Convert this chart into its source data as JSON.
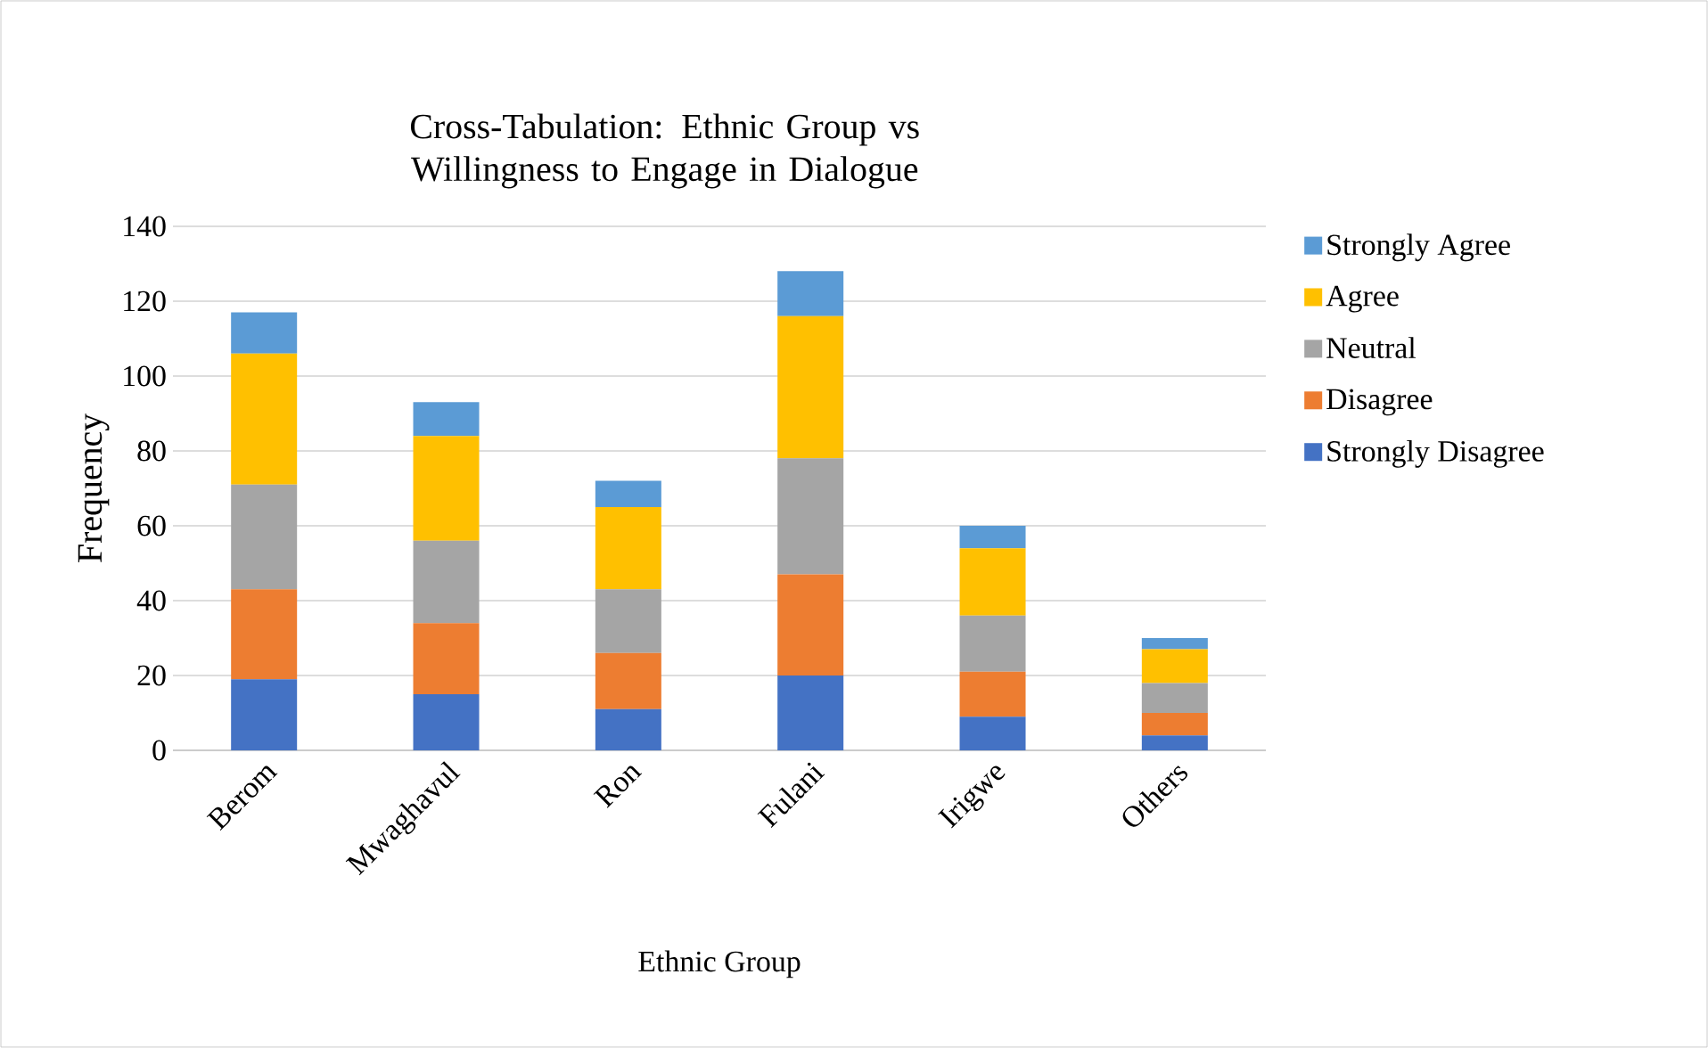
{
  "chart_data": {
    "type": "bar",
    "stacked": true,
    "title": "Cross-Tabulation: Ethnic Group vs Willingness to Engage in Dialogue",
    "xlabel": "Ethnic Group",
    "ylabel": "Frequency",
    "categories": [
      "Berom",
      "Mwaghavul",
      "Ron",
      "Fulani",
      "Irigwe",
      "Others"
    ],
    "series": [
      {
        "name": "Strongly Disagree",
        "color": "#4472c4",
        "values": [
          19,
          15,
          11,
          20,
          9,
          4
        ]
      },
      {
        "name": "Disagree",
        "color": "#ed7d31",
        "values": [
          24,
          19,
          15,
          27,
          12,
          6
        ]
      },
      {
        "name": "Neutral",
        "color": "#a5a5a5",
        "values": [
          28,
          22,
          17,
          31,
          15,
          8
        ]
      },
      {
        "name": "Agree",
        "color": "#ffc000",
        "values": [
          35,
          28,
          22,
          38,
          18,
          9
        ]
      },
      {
        "name": "Strongly Agree",
        "color": "#5b9bd5",
        "values": [
          11,
          9,
          7,
          12,
          6,
          3
        ]
      }
    ],
    "ylim": [
      0,
      140
    ],
    "yticks": [
      0,
      20,
      40,
      60,
      80,
      100,
      120,
      140
    ],
    "grid": "y",
    "legend": "right"
  }
}
